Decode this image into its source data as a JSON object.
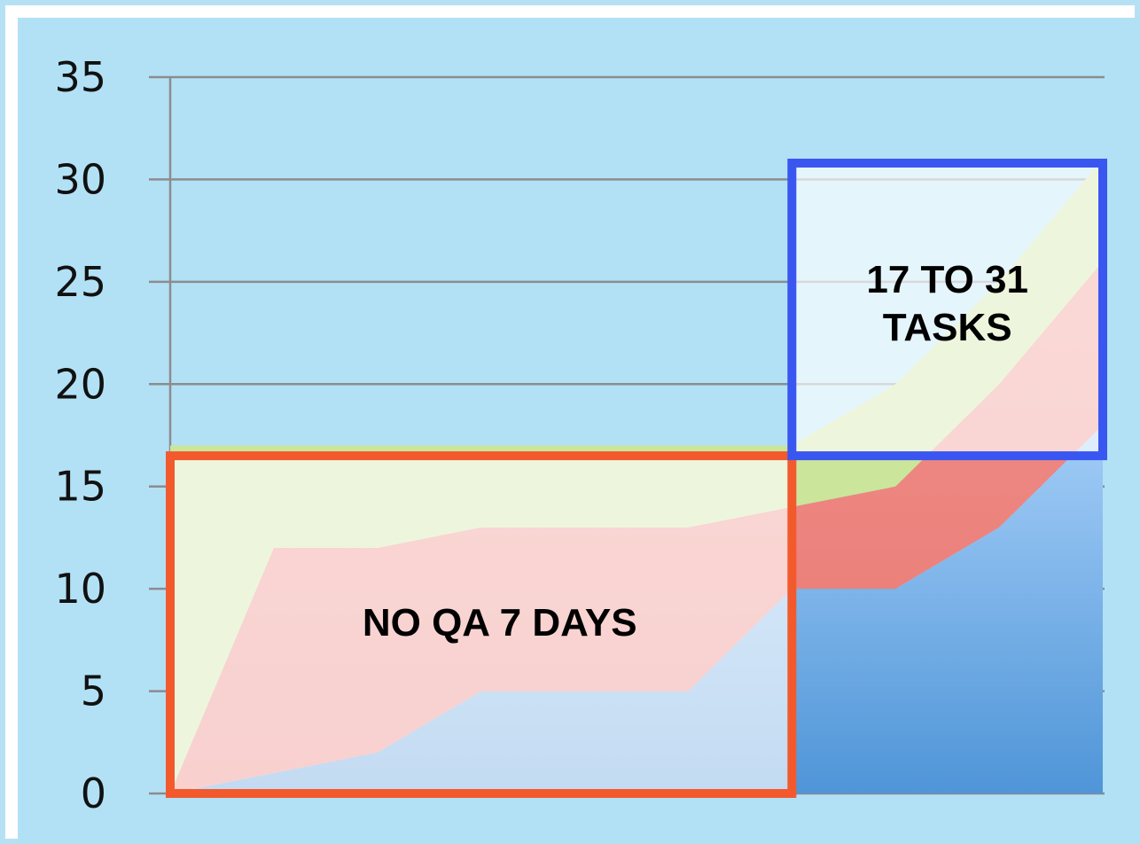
{
  "chart_data": {
    "type": "area",
    "stacked": true,
    "title": "",
    "xlabel": "",
    "ylabel": "",
    "ylim": [
      0,
      35
    ],
    "y_ticks": [
      "0",
      "5",
      "10",
      "15",
      "20",
      "25",
      "30",
      "35"
    ],
    "grid": true,
    "legend": "none",
    "x": [
      1,
      2,
      3,
      4,
      5,
      6,
      7,
      8,
      9,
      10
    ],
    "series": [
      {
        "color": "#4f95d8",
        "values": [
          0,
          1,
          2,
          5,
          5,
          5,
          10,
          10,
          13,
          18
        ]
      },
      {
        "color": "#ef7f79",
        "values": [
          0,
          11,
          10,
          8,
          8,
          8,
          4,
          5,
          7,
          8
        ]
      },
      {
        "color": "#cbe59a",
        "values": [
          17,
          5,
          5,
          4,
          4,
          4,
          3,
          5,
          5,
          5
        ]
      }
    ],
    "annotations": [
      {
        "text": "NO QA 7 DAYS",
        "color": "#f25a2e",
        "x_range": [
          1,
          7
        ],
        "y_range": [
          0,
          16.5
        ]
      },
      {
        "text_lines": [
          "17 TO 31",
          "TASKS"
        ],
        "color": "#3a56f0",
        "x_range": [
          7,
          10
        ],
        "y_range": [
          16.5,
          30.8
        ]
      }
    ]
  }
}
